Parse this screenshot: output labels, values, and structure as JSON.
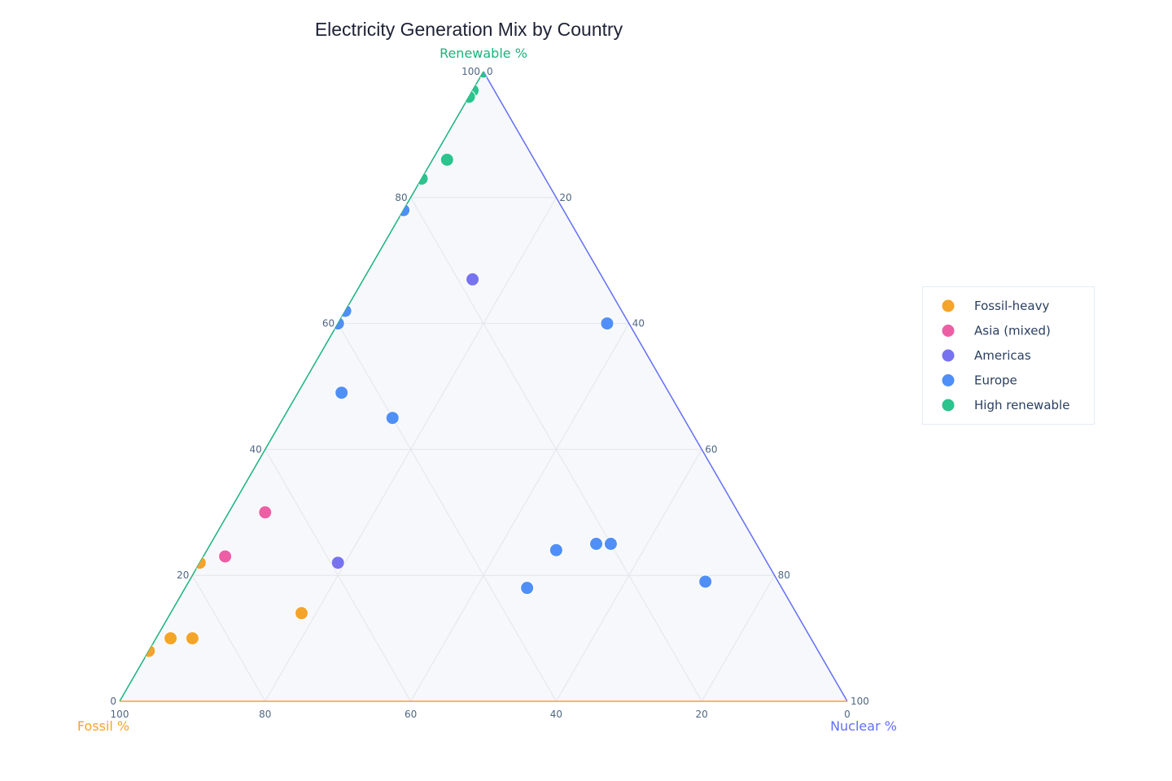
{
  "chart_data": {
    "type": "scatter",
    "subtype": "ternary",
    "title": "Electricity Generation Mix by Country",
    "axes": {
      "a": {
        "title": "Renewable %",
        "color": "#19b47c",
        "ticks": [
          0,
          20,
          40,
          60,
          80,
          100
        ],
        "tick_labels": [
          "0",
          "20",
          "40",
          "60",
          "80",
          "100"
        ]
      },
      "b": {
        "title": "Fossil %",
        "color": "#f5a42a",
        "ticks": [
          0,
          20,
          40,
          60,
          80,
          100
        ],
        "tick_labels": [
          "0",
          "20",
          "40",
          "60",
          "80",
          "100"
        ]
      },
      "c": {
        "title": "Nuclear %",
        "color": "#636efa",
        "ticks": [
          0,
          20,
          40,
          60,
          80,
          100
        ],
        "tick_labels": [
          "0",
          "20",
          "40",
          "60",
          "80",
          "100"
        ]
      }
    },
    "grid": true,
    "legend_position": "right",
    "series": [
      {
        "name": "Fossil-heavy",
        "color": "#f5a42a",
        "points": [
          {
            "renewable": 8,
            "fossil": 92,
            "nuclear": 0
          },
          {
            "renewable": 10,
            "fossil": 88,
            "nuclear": 2
          },
          {
            "renewable": 10,
            "fossil": 85,
            "nuclear": 5
          },
          {
            "renewable": 22,
            "fossil": 78,
            "nuclear": 0
          },
          {
            "renewable": 14,
            "fossil": 68,
            "nuclear": 18
          }
        ]
      },
      {
        "name": "Asia (mixed)",
        "color": "#ec5fa5",
        "points": [
          {
            "renewable": 30,
            "fossil": 65,
            "nuclear": 5
          },
          {
            "renewable": 23,
            "fossil": 74,
            "nuclear": 3
          }
        ]
      },
      {
        "name": "Americas",
        "color": "#7773f0",
        "points": [
          {
            "renewable": 67,
            "fossil": 18,
            "nuclear": 15
          },
          {
            "renewable": 22,
            "fossil": 59,
            "nuclear": 19
          }
        ]
      },
      {
        "name": "Europe",
        "color": "#4f8ff7",
        "points": [
          {
            "renewable": 78,
            "fossil": 22,
            "nuclear": 0
          },
          {
            "renewable": 62,
            "fossil": 38,
            "nuclear": 0
          },
          {
            "renewable": 60,
            "fossil": 40,
            "nuclear": 0
          },
          {
            "renewable": 60,
            "fossil": 3,
            "nuclear": 37
          },
          {
            "renewable": 49,
            "fossil": 45,
            "nuclear": 6
          },
          {
            "renewable": 45,
            "fossil": 40,
            "nuclear": 15
          },
          {
            "renewable": 24,
            "fossil": 28,
            "nuclear": 48
          },
          {
            "renewable": 25,
            "fossil": 22,
            "nuclear": 53
          },
          {
            "renewable": 25,
            "fossil": 20,
            "nuclear": 55
          },
          {
            "renewable": 18,
            "fossil": 35,
            "nuclear": 47
          },
          {
            "renewable": 19,
            "fossil": 10,
            "nuclear": 71
          }
        ]
      },
      {
        "name": "High renewable",
        "color": "#2bc48e",
        "points": [
          {
            "renewable": 100,
            "fossil": 0,
            "nuclear": 0
          },
          {
            "renewable": 97,
            "fossil": 3,
            "nuclear": 0
          },
          {
            "renewable": 96,
            "fossil": 4,
            "nuclear": 0
          },
          {
            "renewable": 86,
            "fossil": 12,
            "nuclear": 2
          },
          {
            "renewable": 83,
            "fossil": 17,
            "nuclear": 0
          }
        ]
      }
    ]
  }
}
